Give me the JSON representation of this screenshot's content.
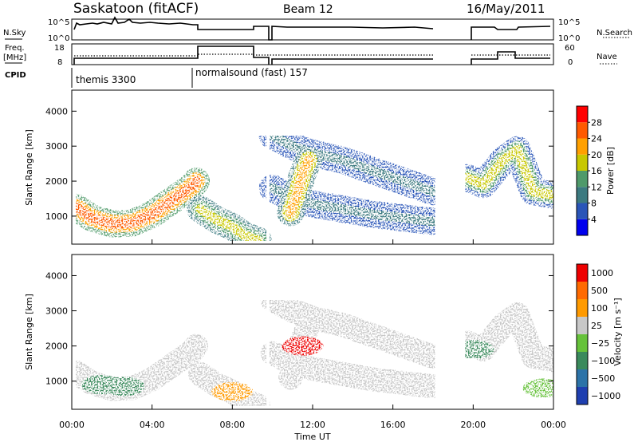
{
  "header": {
    "station": "Saskatoon  (fitACF)",
    "beam": "Beam 12",
    "date": "16/May/2011"
  },
  "strip_labels": {
    "nsky": "N.Sky",
    "nsky_ticks": [
      "10^5",
      "10^0"
    ],
    "nsearch": "N.Search",
    "nsearch_ticks": [
      "10^5",
      "10^0"
    ],
    "freq_line1": "Freq.",
    "freq_line2": "[MHz]",
    "freq_ticks": [
      "18",
      "8"
    ],
    "nave": "Nave",
    "nave_ticks": [
      "60",
      "0"
    ],
    "cpid": "CPID"
  },
  "cpid_modes": [
    {
      "label": "themis 3300",
      "start_h": 0,
      "end_h": 6
    },
    {
      "label": "normalsound (fast) 157",
      "start_h": 6,
      "end_h": 24
    }
  ],
  "time_axis": {
    "label": "Time UT",
    "ticks": [
      "00:00",
      "04:00",
      "08:00",
      "12:00",
      "16:00",
      "20:00",
      "00:00"
    ],
    "tick_hours": [
      0,
      4,
      8,
      12,
      16,
      20,
      24
    ]
  },
  "range_axis": {
    "label": "Slant Range [km]",
    "ticks": [
      "1000",
      "2000",
      "3000",
      "4000"
    ],
    "ylim": [
      200,
      4600
    ]
  },
  "power_scale": {
    "label": "Power [dB]",
    "ticks": [
      "4",
      "8",
      "12",
      "16",
      "20",
      "24",
      "28"
    ],
    "colors": [
      "#0000ee",
      "#2a55b8",
      "#3c7a80",
      "#4f9a6a",
      "#c8c800",
      "#ffa000",
      "#ff5a00",
      "#ff0000"
    ]
  },
  "velocity_scale": {
    "label": "Velocity  [m s⁻¹]",
    "ticks": [
      "1000",
      "500",
      "100",
      "25",
      "−25",
      "−100",
      "−500",
      "−1000"
    ],
    "colors": [
      "#1f3fb0",
      "#2c73a8",
      "#3a8a5c",
      "#66c23a",
      "#c8c8c8",
      "#ff9a00",
      "#ff6a00",
      "#ee0000"
    ]
  },
  "chart_data": {
    "type": "heatmap",
    "title": "Saskatoon  (fitACF)  Beam 12  16/May/2011",
    "xlabel": "Time UT",
    "ylabel": "Slant Range [km]",
    "xlim_hours": [
      0,
      24
    ],
    "ylim_km": [
      200,
      4600
    ],
    "data_gaps_hours": [
      [
        9.7,
        9.85
      ],
      [
        18.1,
        19.6
      ]
    ],
    "frequency_mhz": [
      {
        "start_h": 0,
        "end_h": 6.2,
        "value": 10
      },
      {
        "start_h": 6.2,
        "end_h": 8.9,
        "value": 17
      },
      {
        "start_h": 8.9,
        "end_h": 9.7,
        "value": 10.5
      },
      {
        "start_h": 9.85,
        "end_h": 18.1,
        "value": 10
      },
      {
        "start_h": 19.6,
        "end_h": 21.2,
        "value": 10
      },
      {
        "start_h": 21.2,
        "end_h": 22.2,
        "value": 14
      },
      {
        "start_h": 22.2,
        "end_h": 24,
        "value": 10
      }
    ],
    "power_features_db": [
      {
        "name": "band-1",
        "points": [
          [
            0.2,
            1250
          ],
          [
            1.0,
            950
          ],
          [
            2.0,
            780
          ],
          [
            3.0,
            800
          ],
          [
            4.0,
            1050
          ],
          [
            5.0,
            1450
          ],
          [
            6.0,
            1850
          ],
          [
            6.2,
            2000
          ]
        ],
        "value": 24
      },
      {
        "name": "band-2",
        "points": [
          [
            6.4,
            1200
          ],
          [
            7.2,
            900
          ],
          [
            8.0,
            700
          ],
          [
            8.6,
            450
          ],
          [
            9.3,
            300
          ]
        ],
        "value": 18
      },
      {
        "name": "band-3",
        "points": [
          [
            10.0,
            3300
          ],
          [
            11.0,
            3000
          ],
          [
            12.0,
            2800
          ],
          [
            13.5,
            2600
          ],
          [
            15.0,
            2300
          ],
          [
            16.5,
            2000
          ],
          [
            18.0,
            1700
          ]
        ],
        "value": 10
      },
      {
        "name": "band-4",
        "points": [
          [
            10.0,
            1800
          ],
          [
            11.0,
            1500
          ],
          [
            12.0,
            1350
          ],
          [
            13.5,
            1200
          ],
          [
            15.0,
            1050
          ],
          [
            16.5,
            950
          ],
          [
            18.0,
            850
          ]
        ],
        "value": 8
      },
      {
        "name": "spike-5",
        "points": [
          [
            10.9,
            1100
          ],
          [
            11.2,
            1600
          ],
          [
            11.5,
            2200
          ],
          [
            11.8,
            2600
          ]
        ],
        "value": 20
      },
      {
        "name": "band-6",
        "points": [
          [
            19.7,
            2100
          ],
          [
            20.5,
            1900
          ],
          [
            21.5,
            2600
          ],
          [
            22.2,
            2900
          ],
          [
            23.0,
            1700
          ],
          [
            24.0,
            1600
          ]
        ],
        "value": 16
      }
    ]
  }
}
